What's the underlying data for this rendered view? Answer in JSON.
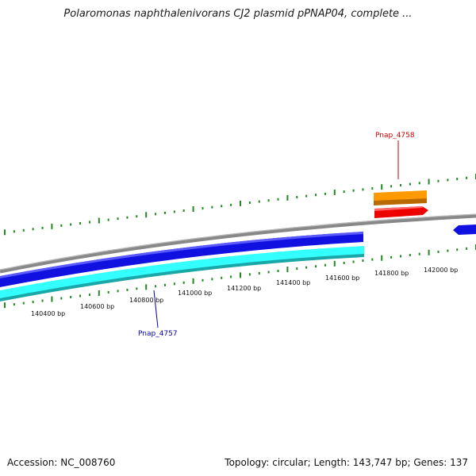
{
  "title": "Polaromonas naphthalenivorans CJ2 plasmid pPNAP04, complete ...",
  "footer": {
    "accession": "Accession: NC_008760",
    "topology": "Topology: circular; Length: 143,747 bp; Genes: 137"
  },
  "scale_labels": [
    "140400 bp",
    "140600 bp",
    "140800 bp",
    "141000 bp",
    "141200 bp",
    "141400 bp",
    "141600 bp",
    "141800 bp",
    "142000 bp"
  ],
  "genes": [
    {
      "label": "Pnap_4758",
      "color": "#cc0000"
    },
    {
      "label": "Pnap_4757",
      "color": "#0000aa"
    }
  ],
  "colors": {
    "backbone": "#888888",
    "forward_strand_gene": "#1010e0",
    "reverse_strand_gene": "#33ffff",
    "orf_orange": "#ff9900",
    "orf_red": "#ee0000",
    "tick_marks": "#228822"
  }
}
